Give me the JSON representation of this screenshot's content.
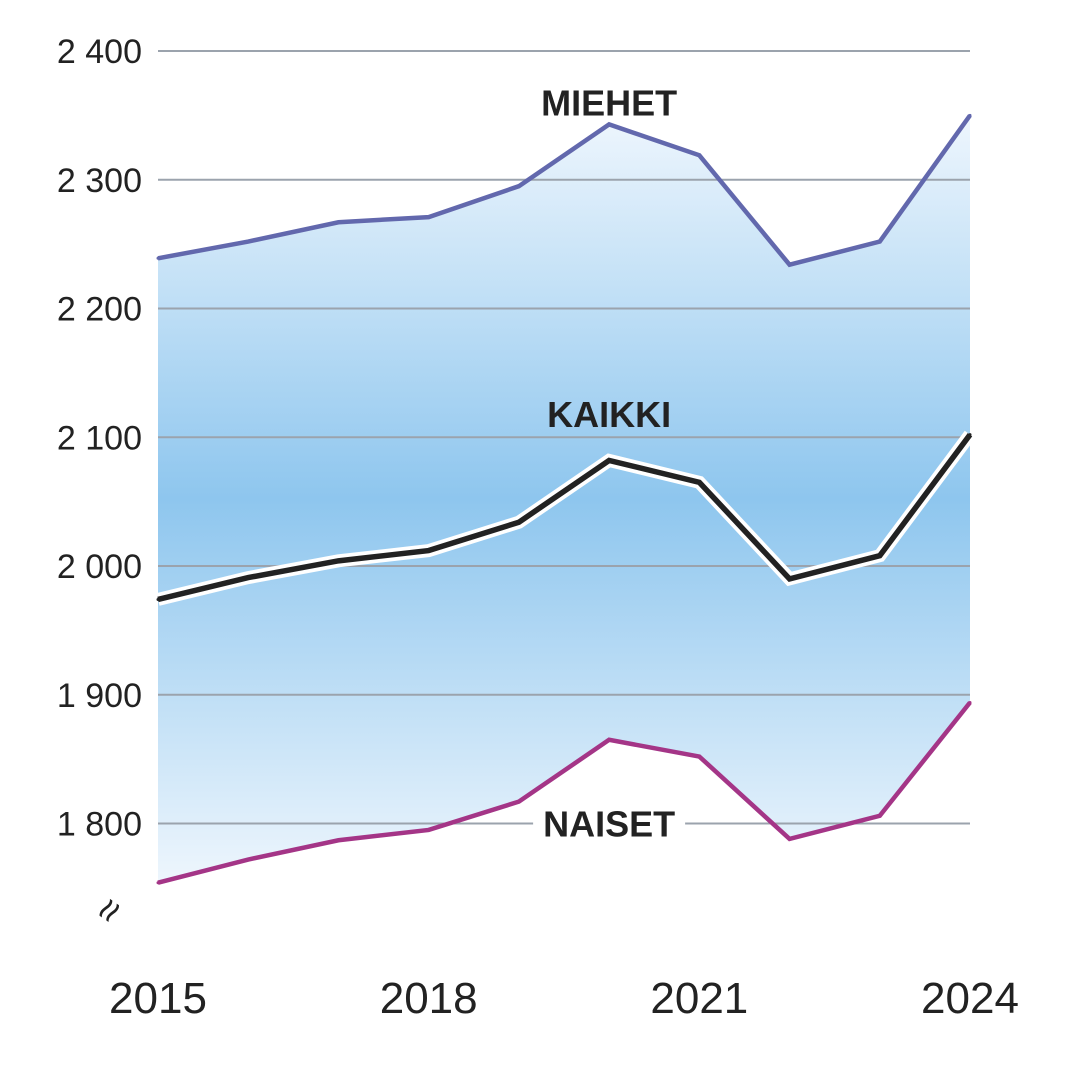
{
  "chart_data": {
    "type": "area",
    "x": [
      2015,
      2016,
      2017,
      2018,
      2019,
      2020,
      2021,
      2022,
      2023,
      2024
    ],
    "series": [
      {
        "name": "MIEHET",
        "color": "#6268ad",
        "values": [
          2239,
          2252,
          2267,
          2271,
          2295,
          2343,
          2319,
          2234,
          2252,
          2350
        ]
      },
      {
        "name": "KAIKKI",
        "color": "#222222",
        "values": [
          1974,
          1991,
          2004,
          2012,
          2034,
          2082,
          2065,
          1990,
          2008,
          2102
        ]
      },
      {
        "name": "NAISET",
        "color": "#a43587",
        "values": [
          1754,
          1772,
          1787,
          1795,
          1817,
          1865,
          1852,
          1788,
          1806,
          1894
        ]
      }
    ],
    "fill": {
      "top": "MIEHET",
      "bottom": "NAISET",
      "light": "#eef6fd",
      "mid": "#8ec6ee"
    },
    "ylim": [
      1750,
      2400
    ],
    "yticks": [
      1800,
      1900,
      2000,
      2100,
      2200,
      2300,
      2400
    ],
    "ytick_labels": [
      "1 800",
      "1 900",
      "2 000",
      "2 100",
      "2 200",
      "2 300",
      "2 400"
    ],
    "xticks": [
      2015,
      2018,
      2021,
      2024
    ],
    "xtick_labels": [
      "2015",
      "2018",
      "2021",
      "2024"
    ],
    "axis_break_symbol": "≈",
    "grid": true,
    "gridline_color": "#9ba3ad"
  }
}
